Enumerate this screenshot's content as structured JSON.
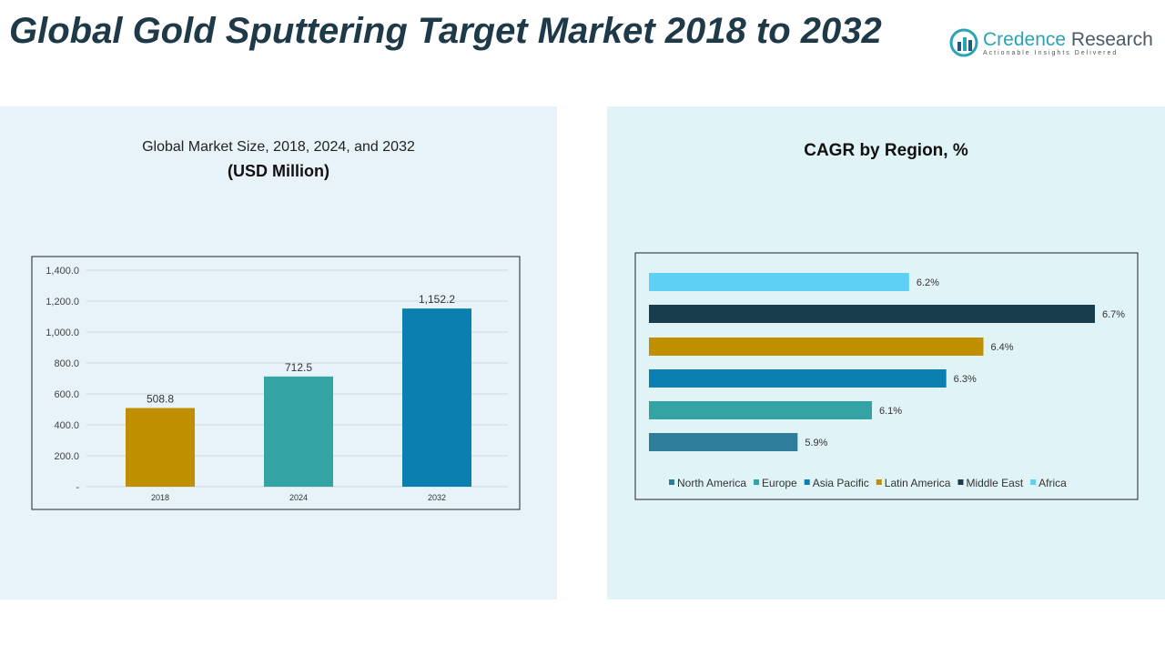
{
  "title": "Global Gold Sputtering Target Market 2018 to 2032",
  "logo": {
    "name_a": "Credence",
    "name_b": " Research",
    "tagline": "Actionable Insights Delivered"
  },
  "colors": {
    "title": "#1e3a48",
    "accent": "#2aa3b5"
  },
  "chart_data": [
    {
      "type": "bar",
      "title": "Global Market Size, 2018, 2024, and 2032",
      "subtitle": "(USD Million)",
      "categories": [
        "2018",
        "2024",
        "2032"
      ],
      "values": [
        508.8,
        712.5,
        1152.2
      ],
      "value_labels": [
        "508.8",
        "712.5",
        "1,152.2"
      ],
      "colors": [
        "#c08f00",
        "#33a3a3",
        "#0a7fb0"
      ],
      "ylim": [
        0,
        1400
      ],
      "yticks": [
        "-",
        "200.0",
        "400.0",
        "600.0",
        "800.0",
        "1,000.0",
        "1,200.0",
        "1,400.0"
      ],
      "grid": true
    },
    {
      "type": "bar",
      "orientation": "horizontal",
      "title": "CAGR by Region, %",
      "categories": [
        "North America",
        "Europe",
        "Asia Pacific",
        "Latin America",
        "Middle East",
        "Africa"
      ],
      "values": [
        5.9,
        6.1,
        6.3,
        6.4,
        6.7,
        6.2
      ],
      "value_labels": [
        "5.9%",
        "6.1%",
        "6.3%",
        "6.4%",
        "6.7%",
        "6.2%"
      ],
      "colors": [
        "#2e7d9a",
        "#33a3a3",
        "#0a7fb0",
        "#c08f00",
        "#183e4d",
        "#5ecff5"
      ],
      "legend": "bottom"
    }
  ]
}
